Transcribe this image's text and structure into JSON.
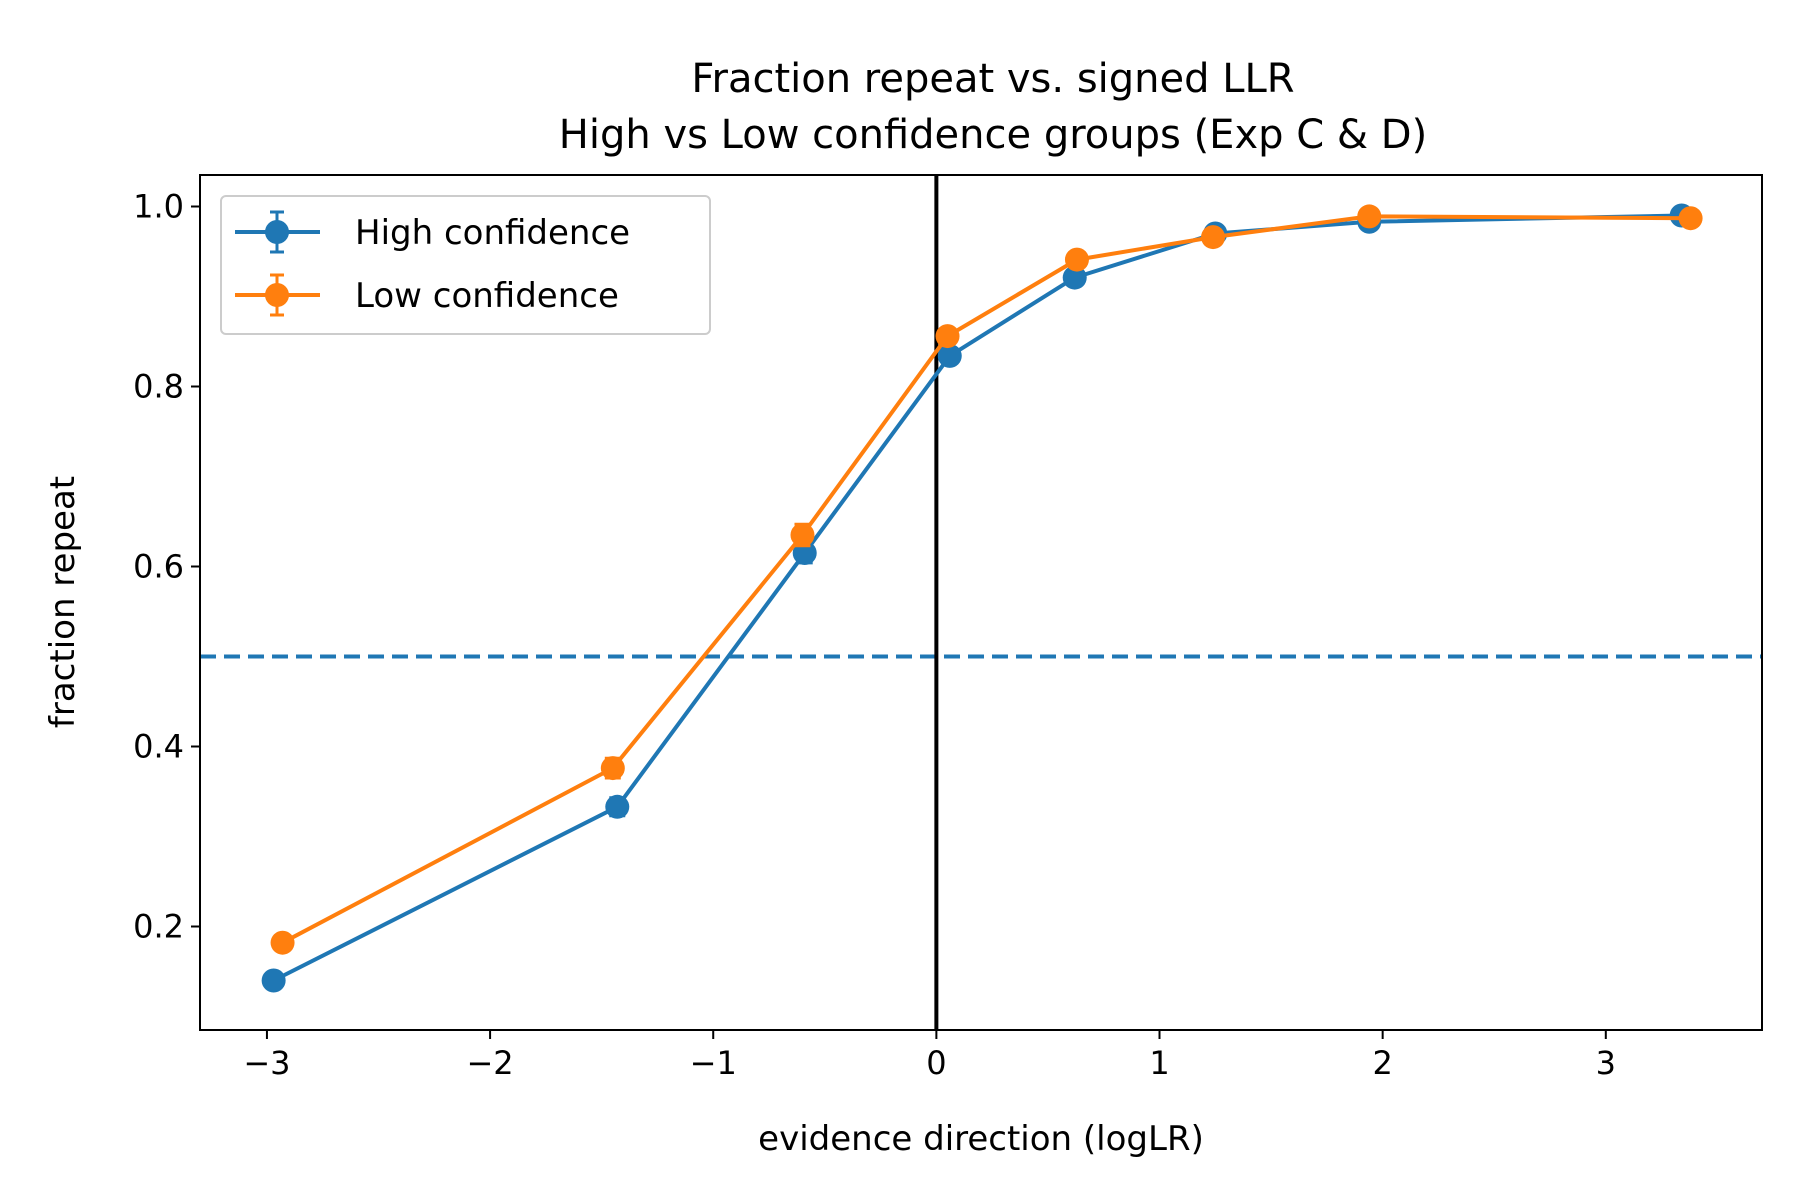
{
  "chart_data": {
    "type": "line",
    "title": "Fraction repeat vs. signed LLR",
    "subtitle": "High vs Low confidence groups (Exp C & D)",
    "xlabel": "evidence direction (logLR)",
    "ylabel": "fraction repeat",
    "xlim": [
      -3.3,
      3.7
    ],
    "ylim": [
      0.085,
      1.035
    ],
    "xticks": [
      -3,
      -2,
      -1,
      0,
      1,
      2,
      3
    ],
    "xtick_labels": [
      "−3",
      "−2",
      "−1",
      "0",
      "1",
      "2",
      "3"
    ],
    "yticks": [
      0.2,
      0.4,
      0.6,
      0.8,
      1.0
    ],
    "ytick_labels": [
      "0.2",
      "0.4",
      "0.6",
      "0.8",
      "1.0"
    ],
    "grid": false,
    "legend_position": "top-left",
    "reference_lines": [
      {
        "orientation": "horizontal",
        "value": 0.5,
        "style": "dashed",
        "color": "#1f77b4"
      },
      {
        "orientation": "vertical",
        "value": 0,
        "style": "solid",
        "color": "#000000"
      }
    ],
    "series": [
      {
        "name": "High confidence",
        "color": "#1f77b4",
        "x": [
          -2.97,
          -1.43,
          -0.59,
          0.06,
          0.62,
          1.25,
          1.94,
          3.34
        ],
        "y": [
          0.14,
          0.333,
          0.615,
          0.834,
          0.921,
          0.97,
          0.983,
          0.99
        ],
        "err": [
          0.008,
          0.01,
          0.011,
          0.008,
          0.006,
          0.004,
          0.004,
          0.003
        ]
      },
      {
        "name": "Low confidence",
        "color": "#ff7f0e",
        "x": [
          -2.93,
          -1.45,
          -0.6,
          0.05,
          0.63,
          1.24,
          1.94,
          3.38
        ],
        "y": [
          0.182,
          0.376,
          0.635,
          0.856,
          0.941,
          0.966,
          0.989,
          0.987
        ],
        "err": [
          0.008,
          0.011,
          0.012,
          0.008,
          0.006,
          0.004,
          0.003,
          0.003
        ]
      }
    ]
  }
}
